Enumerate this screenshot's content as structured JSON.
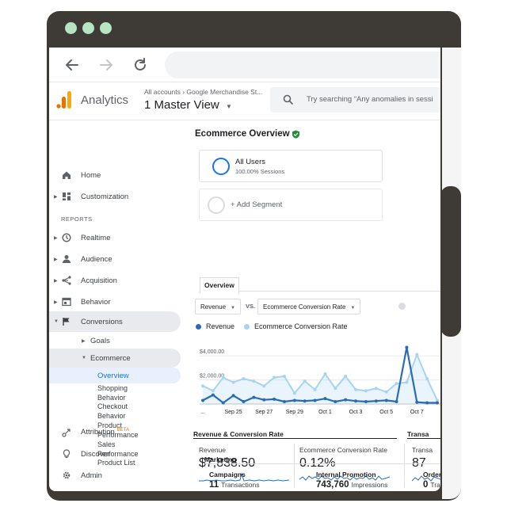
{
  "window": {
    "dots": [
      "dot",
      "dot",
      "dot"
    ]
  },
  "browser": {
    "back_icon": "arrow-left-icon",
    "forward_icon": "arrow-right-icon",
    "reload_icon": "reload-icon"
  },
  "header": {
    "app_name": "Analytics",
    "breadcrumb": "All accounts › Google Merchandise St...",
    "view_name": "1 Master View",
    "search_placeholder": "Try searching “Any anomalies in sessi"
  },
  "sidebar": {
    "home": "Home",
    "customization": "Customization",
    "reports_heading": "REPORTS",
    "realtime": "Realtime",
    "audience": "Audience",
    "acquisition": "Acquisition",
    "behavior": "Behavior",
    "conversions": "Conversions",
    "goals": "Goals",
    "ecommerce": "Ecommerce",
    "overview": "Overview",
    "shopping_behavior": [
      "Shopping",
      "Behavior"
    ],
    "checkout_behavior": [
      "Checkout",
      "Behavior"
    ],
    "product_performance": [
      "Product",
      "Performance"
    ],
    "sales_performance": [
      "Sales",
      "Performance"
    ],
    "product_list": [
      "Product List"
    ],
    "attribution": "Attribution",
    "attribution_badge": "BETA",
    "discover": "Discover",
    "admin": "Admin"
  },
  "main": {
    "title": "Ecommerce Overview",
    "segment": {
      "name": "All Users",
      "detail": "100.00% Sessions"
    },
    "add_segment": "+ Add Segment",
    "tab": "Overview",
    "metric_select_1": "Revenue",
    "vs_label": "VS.",
    "metric_select_2": "Ecommerce Conversion Rate",
    "legend": [
      {
        "name": "Revenue",
        "color": "#2a6bb5"
      },
      {
        "name": "Ecommerce Conversion Rate",
        "color": "#a8d4f2"
      }
    ]
  },
  "chart_data": {
    "type": "line",
    "y_tick_labels": [
      "$4,000.00",
      "$2,000.00"
    ],
    "x_tick_labels": [
      "...",
      "Sep 25",
      "Sep 27",
      "Sep 29",
      "Oct 1",
      "Oct 3",
      "Oct 5",
      "Oct 7"
    ],
    "ylim": [
      0,
      5000
    ],
    "series": [
      {
        "name": "Revenue",
        "color": "#2a6bb5",
        "values": [
          300,
          750,
          100,
          700,
          200,
          550,
          350,
          400,
          200,
          300,
          250,
          300,
          450,
          200,
          350,
          250,
          200,
          250,
          300,
          200,
          4700,
          150,
          100,
          100
        ]
      },
      {
        "name": "Ecommerce Conversion Rate",
        "color": "#a8d4f2",
        "values": [
          1500,
          1100,
          2200,
          1800,
          2100,
          1900,
          1500,
          2200,
          2300,
          900,
          1900,
          1200,
          2500,
          1300,
          2300,
          1200,
          1100,
          1300,
          1000,
          1700,
          1800,
          4100,
          2100,
          300
        ]
      }
    ]
  },
  "revenue_section": {
    "title": "Revenue & Conversion Rate",
    "title_2": "Transa",
    "metrics": [
      {
        "label": "Revenue",
        "value": "$7,838.50"
      },
      {
        "label": "Ecommerce Conversion Rate",
        "value": "0.12%"
      },
      {
        "label": "Transa",
        "value": "87"
      }
    ]
  },
  "marketing": {
    "title": "Marketing",
    "items": [
      {
        "label": "Campaigns",
        "value": "11",
        "unit": "Transactions"
      },
      {
        "label": "Internal Promotion",
        "value": "743,760",
        "unit": "Impressions"
      },
      {
        "label": "Order",
        "value": "0",
        "unit": "Trans"
      }
    ]
  }
}
